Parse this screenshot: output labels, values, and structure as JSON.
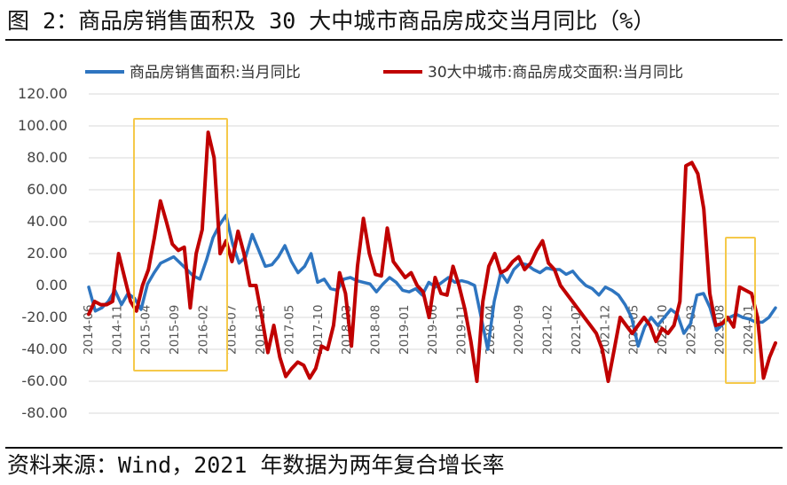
{
  "title": "图 2：商品房销售面积及 30 大中城市商品房成交当月同比（%）",
  "source": "资料来源：Wind，2021 年数据为两年复合增长率",
  "chart_data": {
    "type": "line",
    "ylim": [
      -80,
      120
    ],
    "yticks": [
      "120.00",
      "100.00",
      "80.00",
      "60.00",
      "40.00",
      "20.00",
      "0.00",
      "-20.00",
      "-40.00",
      "-60.00",
      "-80.00"
    ],
    "grid": true,
    "legend_position": "top",
    "x_tick_labels": [
      "2014-06",
      "2014-11",
      "2015-04",
      "2015-09",
      "2016-02",
      "2016-07",
      "2016-12",
      "2017-05",
      "2017-10",
      "2018-03",
      "2018-08",
      "2019-01",
      "2019-06",
      "2019-11",
      "2020-04",
      "2020-09",
      "2021-02",
      "2021-07",
      "2021-12",
      "2022-05",
      "2022-10",
      "2023-03",
      "2023-08",
      "2024-01"
    ],
    "series": [
      {
        "name": "商品房销售面积:当月同比",
        "color": "#2E75C0",
        "values": [
          -1,
          -16,
          -14,
          -10,
          -3,
          -12,
          -5,
          -8,
          -15,
          1,
          8,
          14,
          16,
          18,
          14,
          10,
          6,
          4,
          16,
          30,
          38,
          44,
          26,
          14,
          18,
          32,
          22,
          12,
          13,
          18,
          25,
          15,
          8,
          12,
          20,
          2,
          4,
          -2,
          -3,
          4,
          5,
          3,
          2,
          1,
          -4,
          1,
          5,
          2,
          -3,
          -4,
          -2,
          -6,
          2,
          -1,
          2,
          5,
          2,
          3,
          2,
          0,
          -20,
          -40,
          -10,
          8,
          2,
          10,
          14,
          13,
          10,
          8,
          11,
          10,
          10,
          7,
          9,
          4,
          0,
          -2,
          -6,
          -1,
          -3,
          -6,
          -12,
          -20,
          -38,
          -26,
          -20,
          -25,
          -20,
          -15,
          -18,
          -30,
          -24,
          -6,
          -5,
          -14,
          -28,
          -24,
          -20,
          -18,
          -20,
          -21,
          -23,
          -23,
          -20,
          -14
        ]
      },
      {
        "name": "30大中城市:商品房成交面积:当月同比",
        "color": "#C00000",
        "values": [
          -18,
          -10,
          -12,
          -12,
          -10,
          20,
          5,
          -10,
          -16,
          0,
          10,
          30,
          53,
          40,
          26,
          22,
          24,
          -14,
          20,
          35,
          96,
          80,
          20,
          28,
          15,
          34,
          20,
          0,
          0,
          -20,
          -42,
          -25,
          -45,
          -57,
          -52,
          -48,
          -50,
          -58,
          -52,
          -38,
          -40,
          -25,
          8,
          -5,
          -38,
          12,
          42,
          20,
          7,
          6,
          36,
          15,
          10,
          5,
          8,
          0,
          -4,
          -20,
          5,
          -5,
          -6,
          12,
          0,
          -15,
          -35,
          -60,
          -10,
          12,
          20,
          8,
          10,
          15,
          18,
          10,
          14,
          22,
          28,
          14,
          10,
          0,
          -5,
          -10,
          -15,
          -20,
          -25,
          -30,
          -40,
          -60,
          -40,
          -20,
          -25,
          -30,
          -25,
          -20,
          -25,
          -35,
          -27,
          -30,
          -25,
          -10,
          75,
          77,
          70,
          48,
          -5,
          -25,
          -24,
          -20,
          -26,
          -1,
          -3,
          -5,
          -20,
          -58,
          -45,
          -36
        ]
      }
    ]
  },
  "highlight_boxes": [
    {
      "label": "2015-2016",
      "color": "#F5C94A"
    },
    {
      "label": "2023-08 to 2024-01",
      "color": "#F5C94A"
    }
  ]
}
